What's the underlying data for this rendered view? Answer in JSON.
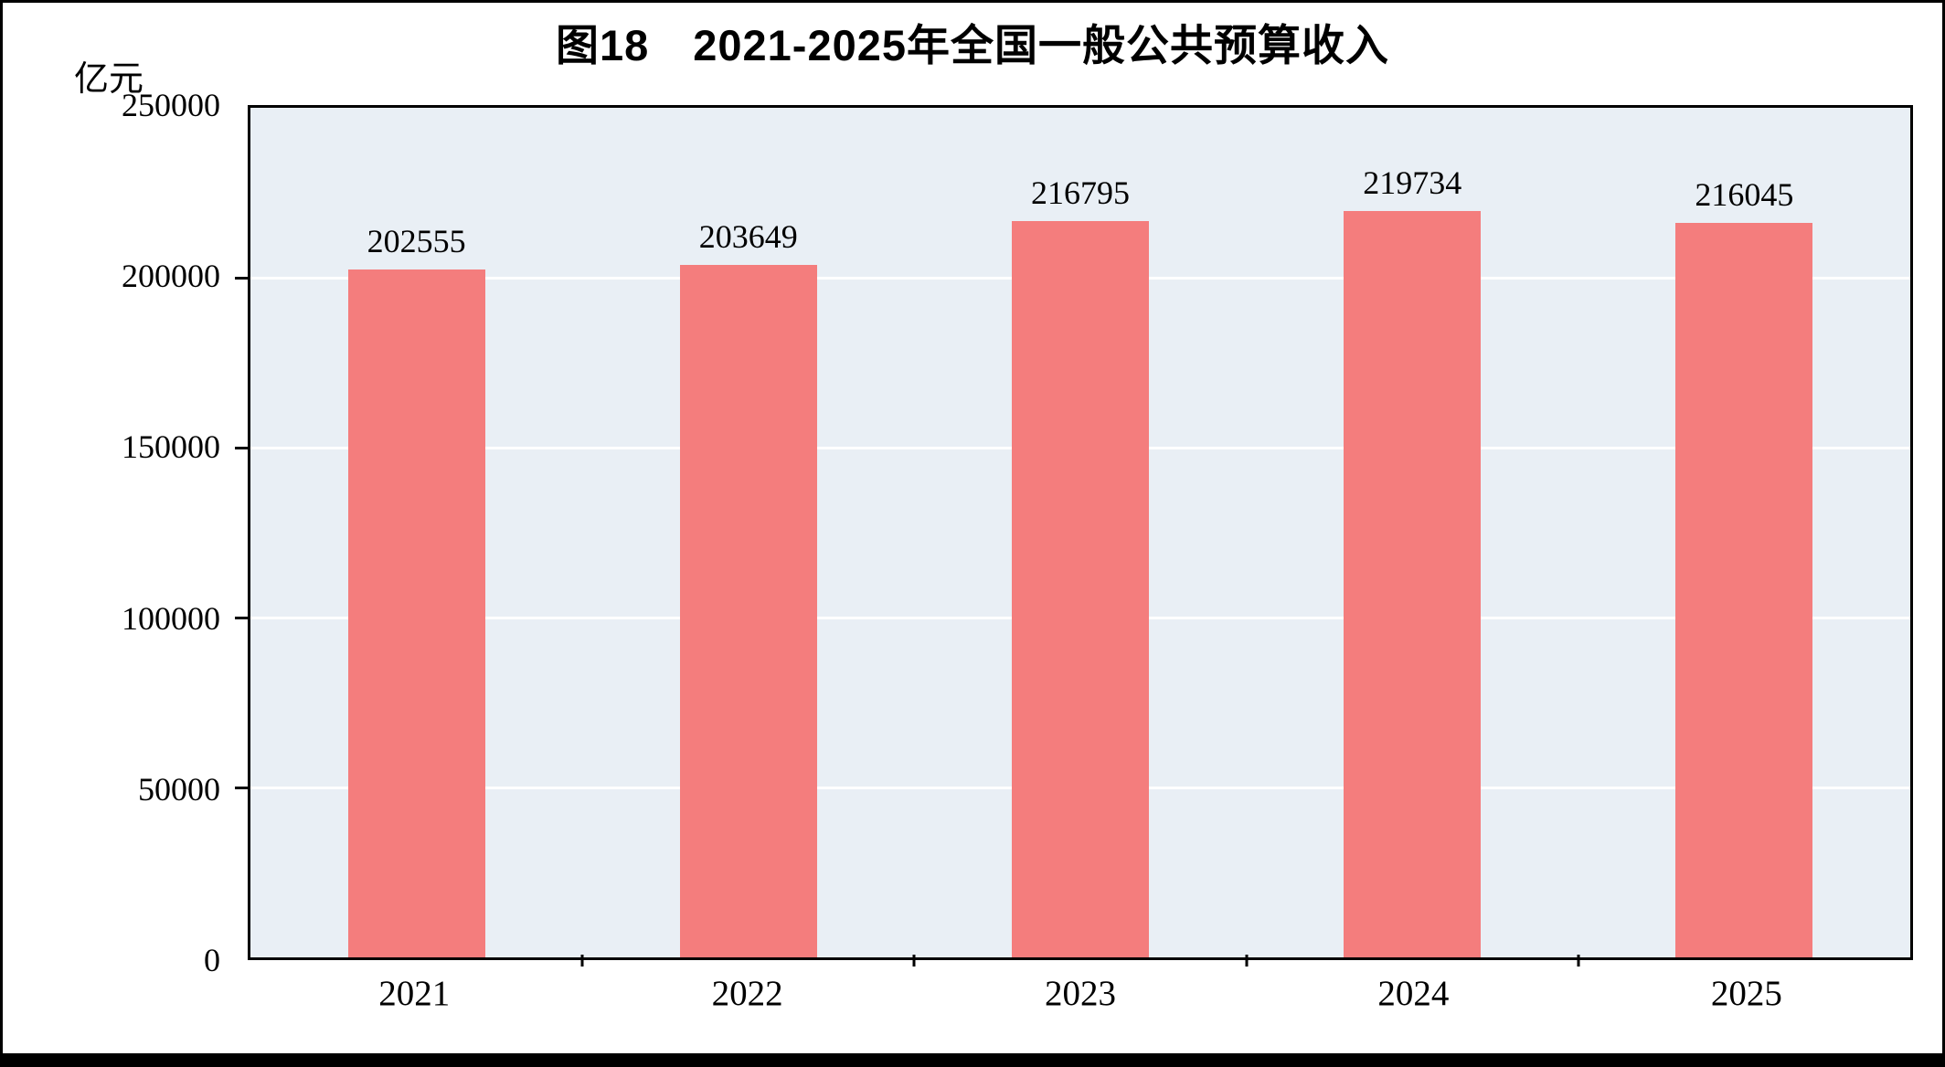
{
  "page": {
    "title": "图18　2021-2025年全国一般公共预算收入",
    "unit_label": "亿元"
  },
  "chart_data": {
    "type": "bar",
    "title": "图18　2021-2025年全国一般公共预算收入",
    "categories": [
      "2021",
      "2022",
      "2023",
      "2024",
      "2025"
    ],
    "values": [
      202555,
      203649,
      216795,
      219734,
      216045
    ],
    "value_labels": [
      "202555",
      "203649",
      "216795",
      "219734",
      "216045"
    ],
    "xlabel": "",
    "ylabel": "亿元",
    "ylim": [
      0,
      250000
    ],
    "yticks": [
      0,
      50000,
      100000,
      150000,
      200000,
      250000
    ],
    "grid": true,
    "legend_position": "none",
    "bar_color": "#f47d7d",
    "plot_background": "#e9eff5",
    "gridline_color": "#ffffff",
    "axis_color": "#000000"
  }
}
